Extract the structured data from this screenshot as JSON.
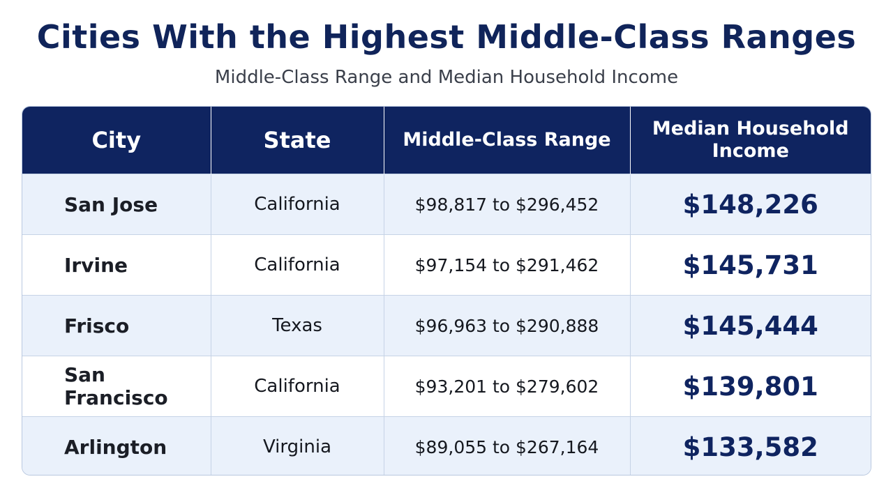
{
  "title": "Cities With the Highest Middle-Class Ranges",
  "subtitle": "Middle-Class Range and Median Household Income",
  "colors": {
    "header_bg": "#0f2460",
    "title": "#10245a",
    "row_alt": "#eaf1fb",
    "income_text": "#0f2460"
  },
  "chart_data": {
    "type": "table",
    "title": "Cities With the Highest Middle-Class Ranges",
    "subtitle": "Middle-Class Range and Median Household Income",
    "columns": [
      "City",
      "State",
      "Middle-Class Range",
      "Median Household Income"
    ],
    "rows": [
      {
        "city": "San Jose",
        "state": "California",
        "range": "$98,817 to $296,452",
        "income": "$148,226"
      },
      {
        "city": "Irvine",
        "state": "California",
        "range": "$97,154 to $291,462",
        "income": "$145,731"
      },
      {
        "city": "Frisco",
        "state": "Texas",
        "range": "$96,963 to $290,888",
        "income": "$145,444"
      },
      {
        "city": "San Francisco",
        "state": "California",
        "range": "$93,201 to $279,602",
        "income": "$139,801"
      },
      {
        "city": "Arlington",
        "state": "Virginia",
        "range": "$89,055 to $267,164",
        "income": "$133,582"
      }
    ]
  }
}
